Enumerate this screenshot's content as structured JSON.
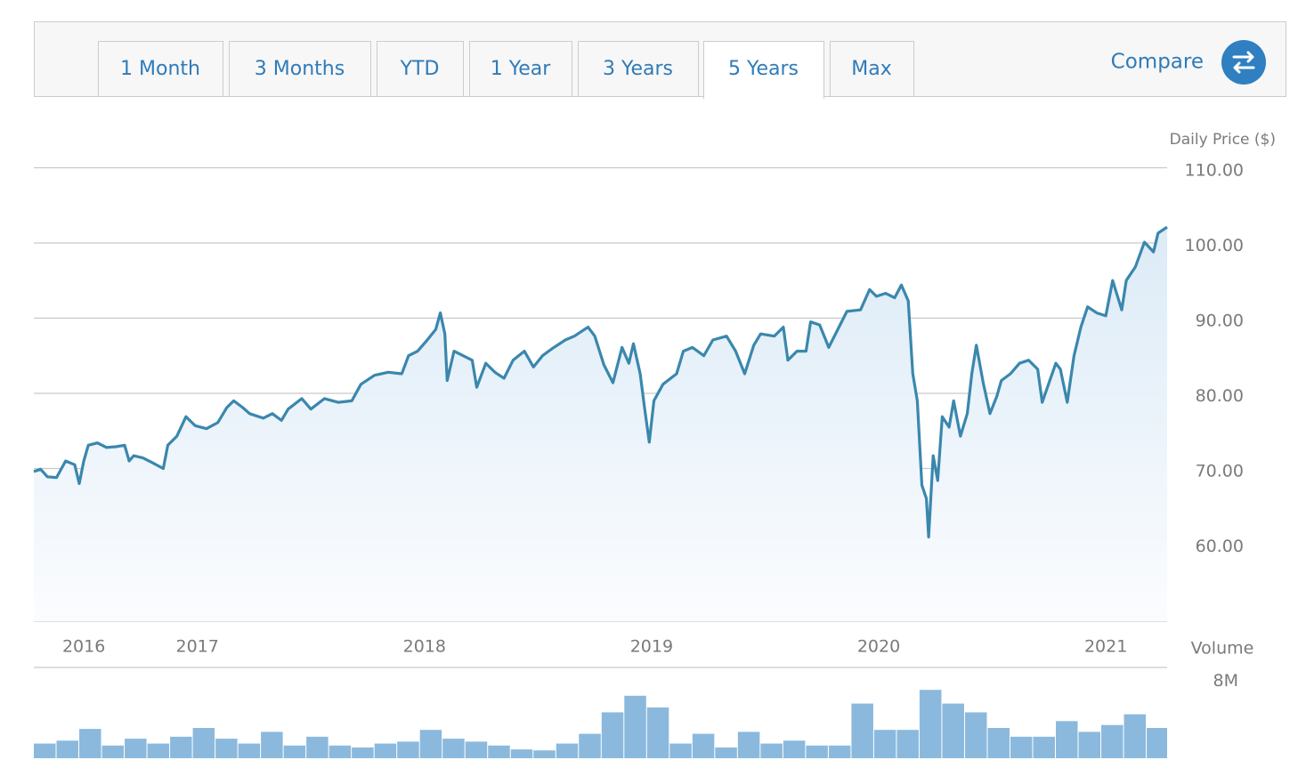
{
  "tabs": [
    "1 Month",
    "3 Months",
    "YTD",
    "1 Year",
    "3 Years",
    "5 Years",
    "Max"
  ],
  "active_tab": 5,
  "compare_button": "Compare",
  "chart_data": [
    {
      "type": "line",
      "y_label": "Daily Price ($)",
      "color": "#3a87ad",
      "x": [
        2016.28,
        2016.31,
        2016.34,
        2016.38,
        2016.42,
        2016.46,
        2016.48,
        2016.5,
        2016.52,
        2016.56,
        2016.6,
        2016.64,
        2016.68,
        2016.7,
        2016.72,
        2016.76,
        2016.8,
        2016.85,
        2016.87,
        2016.91,
        2016.95,
        2016.99,
        2017.04,
        2017.09,
        2017.13,
        2017.16,
        2017.2,
        2017.23,
        2017.29,
        2017.33,
        2017.37,
        2017.4,
        2017.46,
        2017.5,
        2017.56,
        2017.62,
        2017.68,
        2017.72,
        2017.78,
        2017.84,
        2017.9,
        2017.93,
        2017.97,
        2018.01,
        2018.05,
        2018.07,
        2018.09,
        2018.1,
        2018.13,
        2018.17,
        2018.21,
        2018.23,
        2018.27,
        2018.31,
        2018.35,
        2018.39,
        2018.44,
        2018.48,
        2018.52,
        2018.56,
        2018.62,
        2018.66,
        2018.72,
        2018.75,
        2018.79,
        2018.83,
        2018.87,
        2018.9,
        2018.92,
        2018.95,
        2018.97,
        2018.99,
        2019.01,
        2019.05,
        2019.11,
        2019.14,
        2019.18,
        2019.23,
        2019.27,
        2019.33,
        2019.37,
        2019.41,
        2019.45,
        2019.48,
        2019.54,
        2019.58,
        2019.6,
        2019.64,
        2019.68,
        2019.7,
        2019.74,
        2019.78,
        2019.82,
        2019.86,
        2019.92,
        2019.96,
        2019.99,
        2020.03,
        2020.07,
        2020.1,
        2020.13,
        2020.15,
        2020.17,
        2020.19,
        2020.21,
        2020.22,
        2020.24,
        2020.26,
        2020.28,
        2020.31,
        2020.33,
        2020.36,
        2020.39,
        2020.41,
        2020.43,
        2020.46,
        2020.49,
        2020.52,
        2020.54,
        2020.58,
        2020.62,
        2020.66,
        2020.7,
        2020.72,
        2020.75,
        2020.78,
        2020.8,
        2020.83,
        2020.86,
        2020.89,
        2020.92,
        2020.96,
        2021.0,
        2021.03,
        2021.07,
        2021.09,
        2021.13,
        2021.17,
        2021.21,
        2021.23,
        2021.27
      ],
      "values": [
        69.9,
        70.2,
        69.2,
        69.1,
        71.3,
        70.8,
        68.3,
        71.3,
        73.4,
        73.7,
        73.1,
        73.2,
        73.4,
        71.3,
        72.0,
        71.7,
        71.1,
        70.3,
        73.4,
        74.6,
        77.2,
        76.0,
        75.6,
        76.4,
        78.4,
        79.3,
        78.4,
        77.6,
        77.0,
        77.6,
        76.7,
        78.2,
        79.6,
        78.2,
        79.6,
        79.1,
        79.3,
        81.5,
        82.7,
        83.1,
        82.9,
        85.3,
        85.9,
        87.3,
        88.8,
        91.0,
        88.2,
        82.0,
        85.9,
        85.3,
        84.7,
        81.1,
        84.3,
        83.1,
        82.3,
        84.7,
        85.9,
        83.8,
        85.3,
        86.2,
        87.4,
        87.9,
        89.1,
        87.9,
        84.1,
        81.7,
        86.4,
        84.3,
        86.9,
        82.9,
        78.2,
        73.8,
        79.3,
        81.5,
        82.9,
        85.9,
        86.4,
        85.3,
        87.4,
        87.9,
        85.9,
        82.9,
        86.7,
        88.2,
        87.9,
        89.1,
        84.7,
        85.9,
        85.9,
        89.8,
        89.4,
        86.4,
        88.8,
        91.2,
        91.4,
        94.1,
        93.2,
        93.6,
        93.0,
        94.7,
        92.6,
        82.9,
        79.3,
        68.1,
        66.3,
        61.2,
        72.0,
        68.7,
        77.2,
        75.8,
        79.3,
        74.6,
        77.6,
        82.9,
        86.7,
        81.7,
        77.6,
        79.9,
        82.0,
        82.9,
        84.3,
        84.7,
        83.5,
        79.1,
        81.7,
        84.3,
        83.5,
        79.1,
        85.3,
        89.1,
        91.8,
        91.0,
        90.6,
        95.3,
        91.4,
        95.3,
        97.1,
        100.4,
        99.1,
        101.6,
        102.4
      ],
      "xlim": [
        2016.28,
        2021.27
      ],
      "xticks": [
        {
          "value": 2016.5,
          "label": "2016"
        },
        2017,
        2018,
        2019,
        2020,
        2021
      ],
      "ylim": [
        50,
        110
      ],
      "yticks": [
        {
          "value": 60,
          "label": "60.00"
        },
        {
          "value": 70,
          "label": "70.00"
        },
        {
          "value": 80,
          "label": "80.00"
        },
        {
          "value": 90,
          "label": "90.00"
        },
        {
          "value": 100,
          "label": "100.00"
        },
        {
          "value": 110,
          "label": "110.00"
        }
      ],
      "grid": true
    },
    {
      "type": "bar",
      "y_label": "Volume",
      "color": "#8bb9dd",
      "x": [
        2016.33,
        2016.43,
        2016.53,
        2016.63,
        2016.73,
        2016.83,
        2016.93,
        2017.03,
        2017.13,
        2017.23,
        2017.33,
        2017.43,
        2017.53,
        2017.63,
        2017.73,
        2017.83,
        2017.93,
        2018.03,
        2018.13,
        2018.23,
        2018.33,
        2018.43,
        2018.53,
        2018.63,
        2018.73,
        2018.83,
        2018.93,
        2019.03,
        2019.13,
        2019.23,
        2019.33,
        2019.43,
        2019.53,
        2019.63,
        2019.73,
        2019.83,
        2019.93,
        2020.03,
        2020.13,
        2020.23,
        2020.33,
        2020.43,
        2020.53,
        2020.63,
        2020.73,
        2020.83,
        2020.93,
        2021.03,
        2021.13,
        2021.23
      ],
      "values": [
        1.5,
        1.8,
        3.0,
        1.3,
        2.0,
        1.5,
        2.2,
        3.1,
        2.0,
        1.5,
        2.7,
        1.3,
        2.2,
        1.3,
        1.1,
        1.5,
        1.7,
        2.9,
        2.0,
        1.7,
        1.3,
        0.9,
        0.8,
        1.5,
        2.5,
        4.7,
        6.4,
        5.2,
        1.5,
        2.5,
        1.1,
        2.7,
        1.5,
        1.8,
        1.3,
        1.3,
        5.6,
        2.9,
        2.9,
        7.0,
        5.6,
        4.7,
        3.1,
        2.2,
        2.2,
        3.8,
        2.7,
        3.4,
        4.5,
        3.1
      ],
      "xlim": [
        2016.28,
        2021.27
      ],
      "ylim": [
        0,
        9.3
      ],
      "yticks": [
        {
          "value": 8,
          "label": "8M"
        }
      ],
      "grid": false
    }
  ]
}
